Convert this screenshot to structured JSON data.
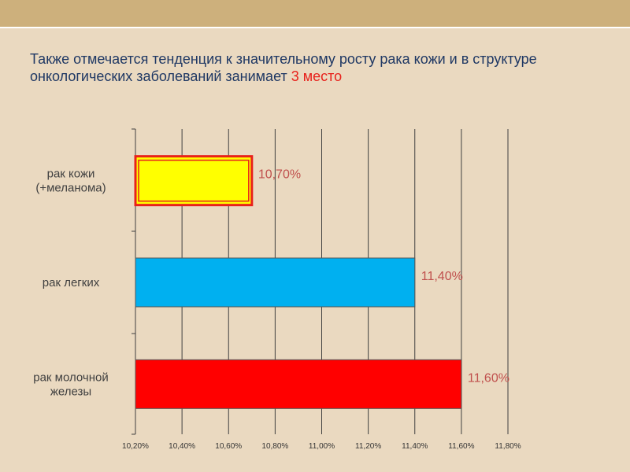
{
  "slide": {
    "title_main": "Также отмечается тенденция к значительному росту рака кожи и в структуре онкологических заболеваний занимает ",
    "title_accent": "3 место"
  },
  "chart_data": {
    "type": "bar",
    "orientation": "horizontal",
    "categories": [
      "рак кожи (+меланома)",
      "рак легких",
      "рак молочной железы"
    ],
    "values": [
      10.7,
      11.4,
      11.6
    ],
    "value_labels": [
      "10,70%",
      "11,40%",
      "11,60%"
    ],
    "x_ticks": [
      "10,20%",
      "10,40%",
      "10,60%",
      "10,80%",
      "11,00%",
      "11,20%",
      "11,40%",
      "11,60%",
      "11,80%"
    ],
    "xlim": [
      10.2,
      11.8
    ],
    "grid": true,
    "legend": "none",
    "colors": {
      "bars": [
        "#ffff00",
        "#00b0f0",
        "#ff0000"
      ],
      "highlight_border": "#e8211b",
      "value_label": "#c0504d",
      "gridline": "#404040"
    }
  }
}
